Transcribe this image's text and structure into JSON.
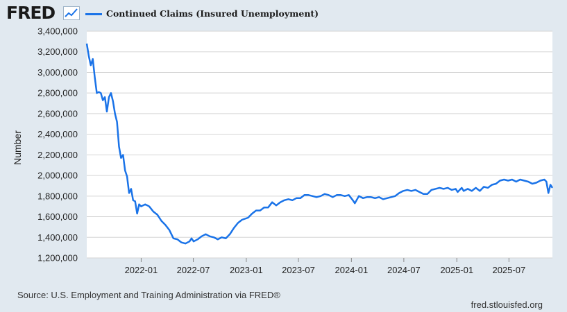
{
  "brand": {
    "logo_text": "FRED",
    "logo_icon": "line-chart-icon"
  },
  "colors": {
    "background": "#e1e9f0",
    "plot_background": "#ffffff",
    "series_line": "#1a73e8",
    "grid": "#d5d5d5"
  },
  "chart_data": {
    "type": "line",
    "title": "",
    "ylabel": "Number",
    "xlabel": "",
    "ylim": [
      1200000,
      3400000
    ],
    "y_ticks": [
      1200000,
      1400000,
      1600000,
      1800000,
      2000000,
      2200000,
      2400000,
      2600000,
      2800000,
      3000000,
      3200000,
      3400000
    ],
    "y_tick_labels": [
      "1,200,000",
      "1,400,000",
      "1,600,000",
      "1,800,000",
      "2,000,000",
      "2,200,000",
      "2,400,000",
      "2,600,000",
      "2,800,000",
      "3,000,000",
      "3,200,000",
      "3,400,000"
    ],
    "xlim": [
      "2021-06-26",
      "2025-11-29"
    ],
    "x_ticks": [
      "2022-01-01",
      "2022-07-01",
      "2023-01-01",
      "2023-07-01",
      "2024-01-01",
      "2024-07-01",
      "2025-01-01",
      "2025-07-01"
    ],
    "x_tick_labels": [
      "2022-01",
      "2022-07",
      "2023-01",
      "2023-07",
      "2024-01",
      "2024-07",
      "2025-01",
      "2025-07"
    ],
    "grid": "horizontal",
    "legend": "top-left",
    "series": [
      {
        "name": "Continued Claims (Insured Unemployment)",
        "color": "#1a73e8",
        "points": [
          [
            "2021-06-26",
            3280000
          ],
          [
            "2021-07-03",
            3160000
          ],
          [
            "2021-07-10",
            3070000
          ],
          [
            "2021-07-17",
            3130000
          ],
          [
            "2021-07-24",
            2950000
          ],
          [
            "2021-07-31",
            2800000
          ],
          [
            "2021-08-07",
            2810000
          ],
          [
            "2021-08-14",
            2800000
          ],
          [
            "2021-08-21",
            2730000
          ],
          [
            "2021-08-28",
            2760000
          ],
          [
            "2021-09-04",
            2620000
          ],
          [
            "2021-09-11",
            2760000
          ],
          [
            "2021-09-18",
            2800000
          ],
          [
            "2021-09-25",
            2720000
          ],
          [
            "2021-10-02",
            2600000
          ],
          [
            "2021-10-09",
            2520000
          ],
          [
            "2021-10-16",
            2280000
          ],
          [
            "2021-10-23",
            2170000
          ],
          [
            "2021-10-30",
            2200000
          ],
          [
            "2021-11-06",
            2050000
          ],
          [
            "2021-11-13",
            1990000
          ],
          [
            "2021-11-20",
            1830000
          ],
          [
            "2021-11-27",
            1870000
          ],
          [
            "2021-12-04",
            1760000
          ],
          [
            "2021-12-11",
            1750000
          ],
          [
            "2021-12-18",
            1630000
          ],
          [
            "2021-12-25",
            1720000
          ],
          [
            "2022-01-01",
            1700000
          ],
          [
            "2022-01-15",
            1720000
          ],
          [
            "2022-01-29",
            1700000
          ],
          [
            "2022-02-12",
            1650000
          ],
          [
            "2022-02-26",
            1620000
          ],
          [
            "2022-03-12",
            1560000
          ],
          [
            "2022-03-26",
            1520000
          ],
          [
            "2022-04-09",
            1470000
          ],
          [
            "2022-04-23",
            1390000
          ],
          [
            "2022-05-07",
            1380000
          ],
          [
            "2022-05-21",
            1350000
          ],
          [
            "2022-06-04",
            1340000
          ],
          [
            "2022-06-18",
            1360000
          ],
          [
            "2022-06-25",
            1390000
          ],
          [
            "2022-07-02",
            1360000
          ],
          [
            "2022-07-16",
            1380000
          ],
          [
            "2022-07-30",
            1410000
          ],
          [
            "2022-08-13",
            1430000
          ],
          [
            "2022-08-27",
            1410000
          ],
          [
            "2022-09-10",
            1400000
          ],
          [
            "2022-09-24",
            1380000
          ],
          [
            "2022-10-08",
            1400000
          ],
          [
            "2022-10-22",
            1390000
          ],
          [
            "2022-11-05",
            1430000
          ],
          [
            "2022-11-19",
            1490000
          ],
          [
            "2022-12-03",
            1540000
          ],
          [
            "2022-12-17",
            1570000
          ],
          [
            "2023-01-07",
            1590000
          ],
          [
            "2023-01-21",
            1630000
          ],
          [
            "2023-02-04",
            1660000
          ],
          [
            "2023-02-18",
            1660000
          ],
          [
            "2023-03-04",
            1690000
          ],
          [
            "2023-03-18",
            1690000
          ],
          [
            "2023-04-01",
            1740000
          ],
          [
            "2023-04-15",
            1710000
          ],
          [
            "2023-04-29",
            1740000
          ],
          [
            "2023-05-13",
            1760000
          ],
          [
            "2023-05-27",
            1770000
          ],
          [
            "2023-06-10",
            1760000
          ],
          [
            "2023-06-24",
            1780000
          ],
          [
            "2023-07-08",
            1780000
          ],
          [
            "2023-07-22",
            1810000
          ],
          [
            "2023-08-05",
            1810000
          ],
          [
            "2023-08-19",
            1800000
          ],
          [
            "2023-09-02",
            1790000
          ],
          [
            "2023-09-16",
            1800000
          ],
          [
            "2023-09-30",
            1820000
          ],
          [
            "2023-10-14",
            1810000
          ],
          [
            "2023-10-28",
            1790000
          ],
          [
            "2023-11-11",
            1810000
          ],
          [
            "2023-11-25",
            1810000
          ],
          [
            "2023-12-09",
            1800000
          ],
          [
            "2023-12-23",
            1810000
          ],
          [
            "2024-01-06",
            1760000
          ],
          [
            "2024-01-13",
            1730000
          ],
          [
            "2024-01-27",
            1800000
          ],
          [
            "2024-02-10",
            1780000
          ],
          [
            "2024-02-24",
            1790000
          ],
          [
            "2024-03-09",
            1790000
          ],
          [
            "2024-03-23",
            1780000
          ],
          [
            "2024-04-06",
            1790000
          ],
          [
            "2024-04-20",
            1770000
          ],
          [
            "2024-05-04",
            1780000
          ],
          [
            "2024-05-18",
            1790000
          ],
          [
            "2024-06-01",
            1800000
          ],
          [
            "2024-06-15",
            1830000
          ],
          [
            "2024-06-29",
            1850000
          ],
          [
            "2024-07-13",
            1860000
          ],
          [
            "2024-07-27",
            1850000
          ],
          [
            "2024-08-10",
            1860000
          ],
          [
            "2024-08-24",
            1840000
          ],
          [
            "2024-09-07",
            1820000
          ],
          [
            "2024-09-21",
            1820000
          ],
          [
            "2024-10-05",
            1860000
          ],
          [
            "2024-10-19",
            1870000
          ],
          [
            "2024-11-02",
            1880000
          ],
          [
            "2024-11-16",
            1870000
          ],
          [
            "2024-11-30",
            1880000
          ],
          [
            "2024-12-14",
            1860000
          ],
          [
            "2024-12-28",
            1870000
          ],
          [
            "2025-01-04",
            1840000
          ],
          [
            "2025-01-18",
            1880000
          ],
          [
            "2025-01-25",
            1850000
          ],
          [
            "2025-02-08",
            1870000
          ],
          [
            "2025-02-22",
            1850000
          ],
          [
            "2025-03-08",
            1880000
          ],
          [
            "2025-03-22",
            1850000
          ],
          [
            "2025-04-05",
            1890000
          ],
          [
            "2025-04-19",
            1880000
          ],
          [
            "2025-05-03",
            1910000
          ],
          [
            "2025-05-17",
            1920000
          ],
          [
            "2025-05-31",
            1950000
          ],
          [
            "2025-06-14",
            1960000
          ],
          [
            "2025-06-28",
            1950000
          ],
          [
            "2025-07-12",
            1960000
          ],
          [
            "2025-07-26",
            1940000
          ],
          [
            "2025-08-09",
            1960000
          ],
          [
            "2025-08-23",
            1950000
          ],
          [
            "2025-09-06",
            1940000
          ],
          [
            "2025-09-20",
            1920000
          ],
          [
            "2025-10-04",
            1930000
          ],
          [
            "2025-10-18",
            1950000
          ],
          [
            "2025-11-01",
            1960000
          ],
          [
            "2025-11-08",
            1940000
          ],
          [
            "2025-11-15",
            1830000
          ],
          [
            "2025-11-22",
            1910000
          ],
          [
            "2025-11-29",
            1880000
          ]
        ]
      }
    ]
  },
  "footer": {
    "source": "Source: U.S. Employment and Training Administration via FRED®",
    "site": "fred.stlouisfed.org"
  }
}
